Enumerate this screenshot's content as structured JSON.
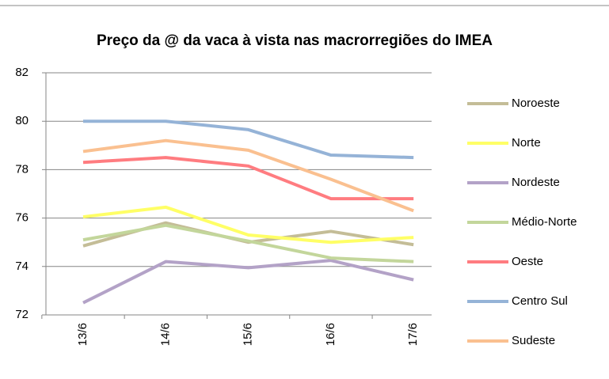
{
  "chart_data": {
    "type": "line",
    "title": "Preço da @ da vaca à vista nas macrorregiões do IMEA",
    "categories": [
      "13/6",
      "14/6",
      "15/6",
      "16/6",
      "17/6"
    ],
    "series": [
      {
        "name": "Noroeste",
        "color": "#c4bd97",
        "values": [
          74.85,
          75.8,
          75.0,
          75.45,
          74.9
        ]
      },
      {
        "name": "Norte",
        "color": "#ffff66",
        "values": [
          76.05,
          76.45,
          75.3,
          75.0,
          75.2
        ]
      },
      {
        "name": "Nordeste",
        "color": "#b3a2c7",
        "values": [
          72.5,
          74.2,
          73.95,
          74.25,
          73.45
        ]
      },
      {
        "name": "Médio-Norte",
        "color": "#c3d69b",
        "values": [
          75.1,
          75.7,
          75.05,
          74.35,
          74.2
        ]
      },
      {
        "name": "Oeste",
        "color": "#ff7c80",
        "values": [
          78.3,
          78.5,
          78.15,
          76.8,
          76.8
        ]
      },
      {
        "name": "Centro Sul",
        "color": "#95b3d7",
        "values": [
          80.0,
          80.0,
          79.65,
          78.6,
          78.5
        ]
      },
      {
        "name": "Sudeste",
        "color": "#fac090",
        "values": [
          78.75,
          79.2,
          78.8,
          77.6,
          76.3
        ]
      }
    ],
    "ylim": [
      72,
      82
    ],
    "yticks": [
      72,
      74,
      76,
      78,
      80,
      82
    ],
    "grid": true,
    "legend": "right"
  }
}
